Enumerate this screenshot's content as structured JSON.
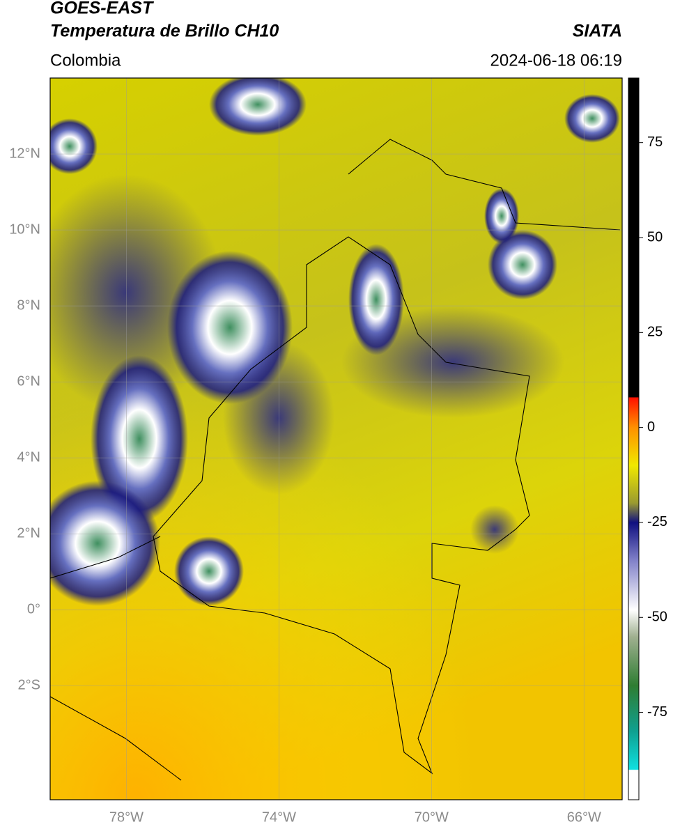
{
  "header": {
    "title_line1": "GOES-EAST",
    "title_line2": "Temperatura de Brillo CH10",
    "agency": "SIATA",
    "region": "Colombia",
    "timestamp": "2024-06-18 06:19"
  },
  "map": {
    "lon_range": [
      -80,
      -65
    ],
    "lat_range": [
      -5,
      14
    ],
    "lat_ticks": [
      {
        "value": 12,
        "label": "12°N"
      },
      {
        "value": 10,
        "label": "10°N"
      },
      {
        "value": 8,
        "label": "8°N"
      },
      {
        "value": 6,
        "label": "6°N"
      },
      {
        "value": 4,
        "label": "4°N"
      },
      {
        "value": 2,
        "label": "2°N"
      },
      {
        "value": 0,
        "label": "0°"
      },
      {
        "value": -2,
        "label": "2°S"
      }
    ],
    "lon_ticks": [
      {
        "value": -78,
        "label": "78°W"
      },
      {
        "value": -74,
        "label": "74°W"
      },
      {
        "value": -70,
        "label": "70°W"
      },
      {
        "value": -66,
        "label": "66°W"
      }
    ]
  },
  "colorbar": {
    "lim": [
      -98,
      92
    ],
    "ticks": [
      75,
      50,
      25,
      0,
      -25,
      -50,
      -75
    ]
  }
}
